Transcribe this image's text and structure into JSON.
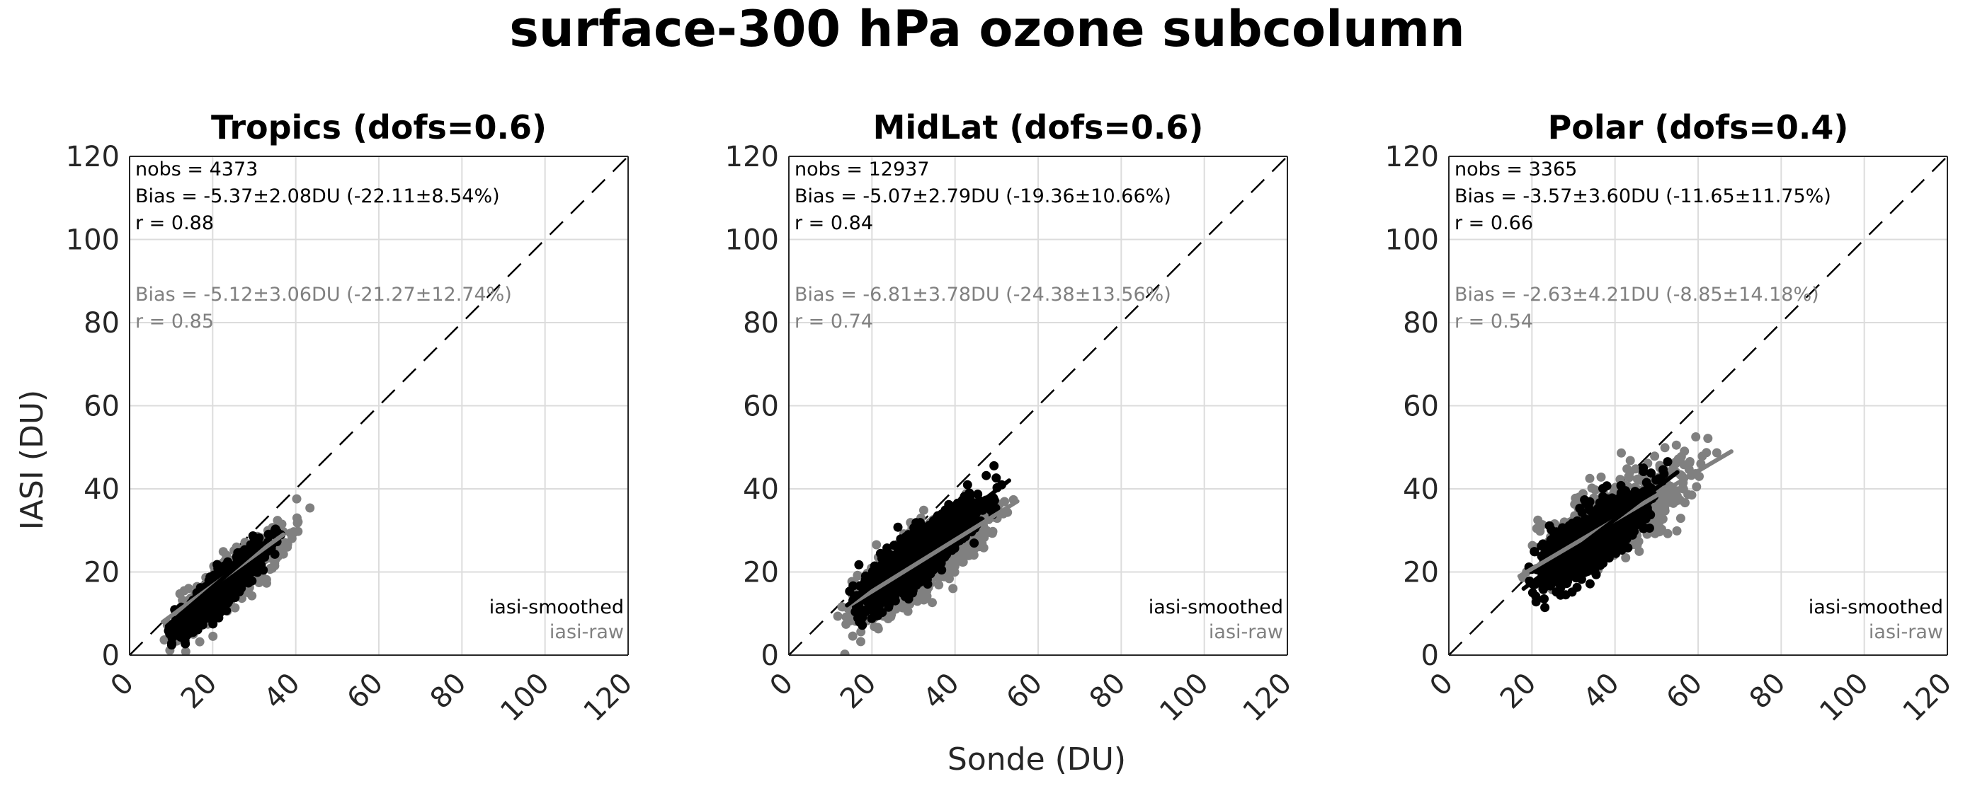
{
  "suptitle": "surface-300 hPa ozone subcolumn",
  "xlabel": "Sonde (DU)",
  "ylabel": "IASI (DU)",
  "colors": {
    "smoothed": "#000000",
    "raw": "#808080",
    "grid": "#dcdcdc",
    "axis": "#262626"
  },
  "chart_data": [
    {
      "type": "scatter",
      "title": "Tropics (dofs=0.6)",
      "xlim": [
        0,
        120
      ],
      "ylim": [
        0,
        120
      ],
      "xticks": [
        "0",
        "20",
        "40",
        "60",
        "80",
        "100",
        "120"
      ],
      "yticks": [
        "0",
        "20",
        "40",
        "60",
        "80",
        "100",
        "120"
      ],
      "grid": true,
      "one_to_one_line": "dashed",
      "stats": {
        "smoothed": [
          "nobs = 4373",
          "Bias = -5.37±2.08DU (-22.11±8.54%)",
          "r = 0.88"
        ],
        "raw": [
          "Bias = -5.12±3.06DU (-21.27±12.74%)",
          "r = 0.85"
        ]
      },
      "legend": [
        "iasi-smoothed",
        "iasi-raw"
      ],
      "legend_location": "bottom-right",
      "series": [
        {
          "name": "iasi-raw",
          "color": "#808080",
          "point_cloud": {
            "x_range": [
              7,
              44
            ],
            "slope": 0.78,
            "intercept": -1.0,
            "spread": 3.0,
            "n": 700
          },
          "fit": [
            [
              8,
              8
            ],
            [
              37,
              29
            ]
          ]
        },
        {
          "name": "iasi-smoothed",
          "color": "#000000",
          "point_cloud": {
            "x_range": [
              8,
              38
            ],
            "slope": 0.88,
            "intercept": -3.5,
            "spread": 2.1,
            "n": 800
          },
          "fit": [
            [
              9,
              7
            ],
            [
              36,
              30
            ]
          ]
        }
      ]
    },
    {
      "type": "scatter",
      "title": "MidLat (dofs=0.6)",
      "xlim": [
        0,
        120
      ],
      "ylim": [
        0,
        120
      ],
      "xticks": [
        "0",
        "20",
        "40",
        "60",
        "80",
        "100",
        "120"
      ],
      "yticks": [
        "0",
        "20",
        "40",
        "60",
        "80",
        "100",
        "120"
      ],
      "grid": true,
      "one_to_one_line": "dashed",
      "stats": {
        "smoothed": [
          "nobs = 12937",
          "Bias = -5.07±2.79DU (-19.36±10.66%)",
          "r = 0.84"
        ],
        "raw": [
          "Bias = -6.81±3.78DU (-24.38±13.56%)",
          "r = 0.74"
        ]
      },
      "legend": [
        "iasi-smoothed",
        "iasi-raw"
      ],
      "legend_location": "bottom-right",
      "series": [
        {
          "name": "iasi-raw",
          "color": "#808080",
          "point_cloud": {
            "x_range": [
              11,
              56
            ],
            "slope": 0.66,
            "intercept": 1.0,
            "spread": 3.8,
            "n": 1100
          },
          "fit": [
            [
              13,
              11
            ],
            [
              55,
              37
            ]
          ]
        },
        {
          "name": "iasi-smoothed",
          "color": "#000000",
          "point_cloud": {
            "x_range": [
              13,
              53
            ],
            "slope": 0.78,
            "intercept": -0.5,
            "spread": 2.8,
            "n": 1500
          },
          "fit": [
            [
              14,
              12
            ],
            [
              53,
              42
            ]
          ]
        }
      ]
    },
    {
      "type": "scatter",
      "title": "Polar (dofs=0.4)",
      "xlim": [
        0,
        120
      ],
      "ylim": [
        0,
        120
      ],
      "xticks": [
        "0",
        "20",
        "40",
        "60",
        "80",
        "100",
        "120"
      ],
      "yticks": [
        "0",
        "20",
        "40",
        "60",
        "80",
        "100",
        "120"
      ],
      "grid": true,
      "one_to_one_line": "dashed",
      "stats": {
        "smoothed": [
          "nobs = 3365",
          "Bias = -3.57±3.60DU (-11.65±11.75%)",
          "r = 0.66"
        ],
        "raw": [
          "Bias = -2.63±4.21DU (-8.85±14.18%)",
          "r = 0.54"
        ]
      },
      "legend": [
        "iasi-smoothed",
        "iasi-raw"
      ],
      "legend_location": "bottom-right",
      "series": [
        {
          "name": "iasi-raw",
          "color": "#808080",
          "point_cloud": {
            "x_range": [
              17,
              68
            ],
            "slope": 0.55,
            "intercept": 11.0,
            "spread": 4.2,
            "n": 700
          },
          "fit": [
            [
              17,
              19
            ],
            [
              68,
              49
            ]
          ]
        },
        {
          "name": "iasi-smoothed",
          "color": "#000000",
          "point_cloud": {
            "x_range": [
              18,
              55
            ],
            "slope": 0.62,
            "intercept": 7.0,
            "spread": 3.6,
            "n": 1000
          },
          "fit": [
            [
              18,
              16
            ],
            [
              55,
              44
            ]
          ]
        }
      ]
    }
  ]
}
